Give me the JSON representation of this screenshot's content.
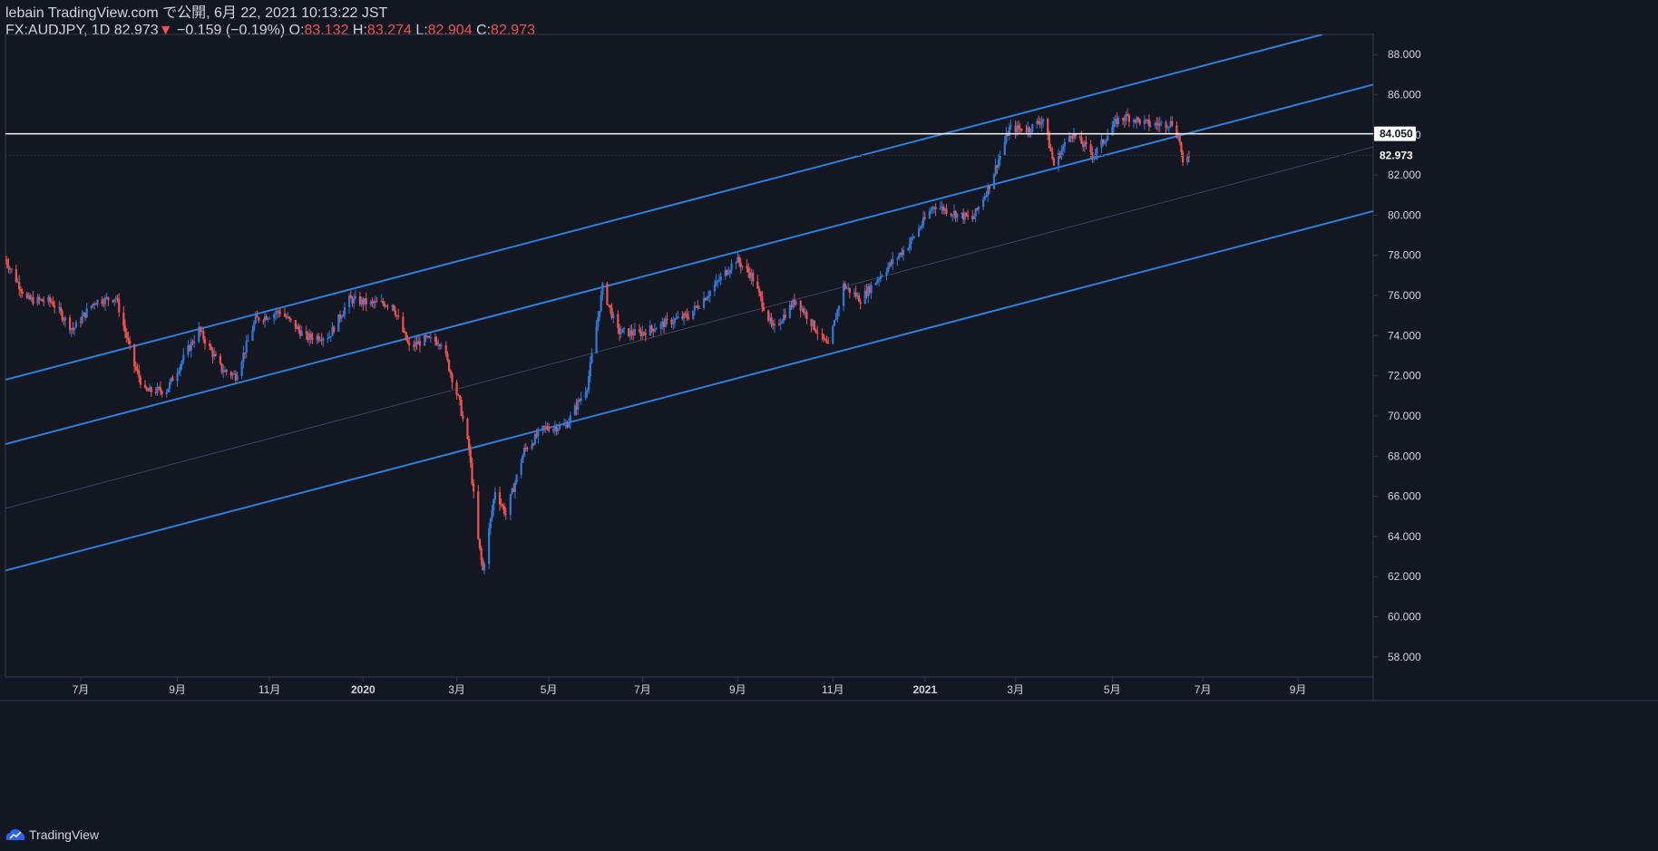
{
  "header": {
    "published": "lebain TradingView.com で公開, 6月 22, 2021 10:13:22 JST",
    "symbol_line": "FX:AUDJPY, 1D 82.973",
    "change_arrow": "▼",
    "change": "−0.159 (−0.19%)",
    "o_label": "O:",
    "o_value": "83.132",
    "h_label": "H:",
    "h_value": "83.274",
    "l_label": "L:",
    "l_value": "82.904",
    "c_label": "C:",
    "c_value": "82.973"
  },
  "footer": {
    "brand": "TradingView"
  },
  "colors": {
    "background": "#131722",
    "up": "#2f7ad6",
    "down": "#ef5350",
    "channel": "#2e7fd8",
    "horizontal_line": "#ffffff",
    "grid_text": "#d1d4dc"
  },
  "chart_data": {
    "type": "candlestick",
    "symbol": "FX:AUDJPY",
    "interval": "1D",
    "ylim": [
      57.0,
      89.0
    ],
    "y_ticks": [
      58,
      60,
      62,
      64,
      66,
      68,
      70,
      72,
      74,
      76,
      78,
      80,
      82,
      84,
      86,
      88
    ],
    "y_tick_labels": [
      "58.000",
      "60.000",
      "62.000",
      "64.000",
      "66.000",
      "68.000",
      "70.000",
      "72.000",
      "74.000",
      "76.000",
      "78.000",
      "80.000",
      "82.000",
      "84.000",
      "86.000",
      "88.000"
    ],
    "x_range": [
      "2019-05-13",
      "2021-10-20"
    ],
    "x_ticks": [
      {
        "date": "2019-07-01",
        "label": "7月"
      },
      {
        "date": "2019-09-02",
        "label": "9月"
      },
      {
        "date": "2019-11-01",
        "label": "11月"
      },
      {
        "date": "2020-01-01",
        "label": "2020"
      },
      {
        "date": "2020-03-02",
        "label": "3月"
      },
      {
        "date": "2020-05-01",
        "label": "5月"
      },
      {
        "date": "2020-07-01",
        "label": "7月"
      },
      {
        "date": "2020-09-01",
        "label": "9月"
      },
      {
        "date": "2020-11-02",
        "label": "11月"
      },
      {
        "date": "2021-01-01",
        "label": "2021"
      },
      {
        "date": "2021-03-01",
        "label": "3月"
      },
      {
        "date": "2021-05-03",
        "label": "5月"
      },
      {
        "date": "2021-07-01",
        "label": "7月"
      },
      {
        "date": "2021-09-01",
        "label": "9月"
      }
    ],
    "price_path": [
      [
        "2019-05-13",
        77.8
      ],
      [
        "2019-05-27",
        75.8
      ],
      [
        "2019-06-12",
        75.7
      ],
      [
        "2019-06-26",
        74.3
      ],
      [
        "2019-07-10",
        75.7
      ],
      [
        "2019-07-24",
        75.9
      ],
      [
        "2019-08-05",
        72.5
      ],
      [
        "2019-08-12",
        71.2
      ],
      [
        "2019-08-26",
        71.3
      ],
      [
        "2019-09-16",
        74.3
      ],
      [
        "2019-10-01",
        72.3
      ],
      [
        "2019-10-10",
        72.0
      ],
      [
        "2019-10-23",
        74.8
      ],
      [
        "2019-11-08",
        75.2
      ],
      [
        "2019-11-25",
        73.9
      ],
      [
        "2019-12-10",
        74.0
      ],
      [
        "2019-12-23",
        75.8
      ],
      [
        "2020-01-06",
        75.6
      ],
      [
        "2020-01-20",
        75.6
      ],
      [
        "2020-01-31",
        73.4
      ],
      [
        "2020-02-10",
        73.8
      ],
      [
        "2020-02-21",
        73.7
      ],
      [
        "2020-03-04",
        70.6
      ],
      [
        "2020-03-10",
        68.3
      ],
      [
        "2020-03-16",
        63.8
      ],
      [
        "2020-03-19",
        62.3
      ],
      [
        "2020-03-27",
        66.3
      ],
      [
        "2020-04-03",
        65.1
      ],
      [
        "2020-04-15",
        68.3
      ],
      [
        "2020-04-28",
        69.4
      ],
      [
        "2020-05-12",
        69.5
      ],
      [
        "2020-05-26",
        71.5
      ],
      [
        "2020-06-05",
        76.4
      ],
      [
        "2020-06-15",
        74.2
      ],
      [
        "2020-06-29",
        74.1
      ],
      [
        "2020-07-15",
        74.6
      ],
      [
        "2020-07-31",
        75.0
      ],
      [
        "2020-08-14",
        76.2
      ],
      [
        "2020-08-31",
        77.8
      ],
      [
        "2020-09-10",
        77.0
      ],
      [
        "2020-09-24",
        74.3
      ],
      [
        "2020-10-09",
        75.8
      ],
      [
        "2020-10-30",
        73.4
      ],
      [
        "2020-11-09",
        76.5
      ],
      [
        "2020-11-20",
        75.8
      ],
      [
        "2020-12-04",
        77.1
      ],
      [
        "2020-12-21",
        78.5
      ],
      [
        "2021-01-07",
        80.5
      ],
      [
        "2021-01-20",
        80.1
      ],
      [
        "2021-02-01",
        79.8
      ],
      [
        "2021-02-12",
        81.5
      ],
      [
        "2021-02-25",
        84.3
      ],
      [
        "2021-03-10",
        84.3
      ],
      [
        "2021-03-19",
        84.8
      ],
      [
        "2021-03-26",
        82.5
      ],
      [
        "2021-04-06",
        84.1
      ],
      [
        "2021-04-21",
        83.0
      ],
      [
        "2021-05-06",
        84.7
      ],
      [
        "2021-05-13",
        84.9
      ],
      [
        "2021-05-28",
        84.5
      ],
      [
        "2021-06-11",
        84.6
      ],
      [
        "2021-06-16",
        83.7
      ],
      [
        "2021-06-18",
        82.4
      ],
      [
        "2021-06-22",
        82.97
      ]
    ],
    "horizontal_line": {
      "value": 84.05,
      "label": "84.050"
    },
    "last_price": {
      "value": 82.973,
      "label": "82.973"
    },
    "channel_lines": [
      {
        "start": [
          "2019-05-13",
          71.8
        ],
        "end": [
          "2021-09-17",
          89.0
        ]
      },
      {
        "start": [
          "2019-05-13",
          68.6
        ],
        "end": [
          "2021-10-20",
          86.5
        ]
      },
      {
        "start": [
          "2019-05-13",
          65.4
        ],
        "end": [
          "2021-10-20",
          83.4
        ]
      },
      {
        "start": [
          "2019-05-13",
          62.3
        ],
        "end": [
          "2021-10-20",
          80.2
        ]
      }
    ]
  }
}
